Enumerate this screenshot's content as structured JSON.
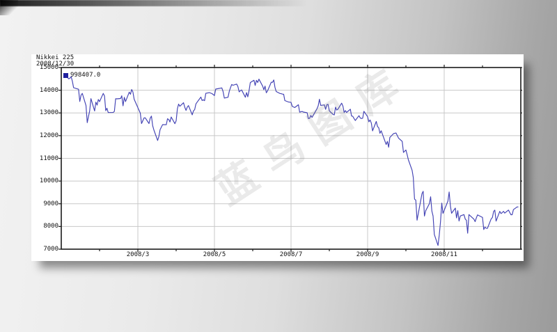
{
  "panel": {
    "title_line1": "Nikkei 225",
    "title_line2": "2008/12/30",
    "legend": {
      "label": "998407.0",
      "marker_color": "#20209e"
    }
  },
  "watermark": {
    "text": "蓝鸟图库"
  },
  "chart_data": {
    "type": "line",
    "title": "Nikkei 225",
    "as_of_date": "2008/12/30",
    "xlabel": "",
    "ylabel": "",
    "ylim": [
      7000,
      15000
    ],
    "y_ticks": [
      7000,
      8000,
      9000,
      10000,
      11000,
      12000,
      13000,
      14000,
      15000
    ],
    "x_major_ticks": [
      {
        "label": "2008/3",
        "month": 3
      },
      {
        "label": "2008/5",
        "month": 5
      },
      {
        "label": "2008/7",
        "month": 7
      },
      {
        "label": "2008/9",
        "month": 9
      },
      {
        "label": "2008/11",
        "month": 11
      }
    ],
    "x_minor_tick_months": [
      2,
      4,
      6,
      8,
      10,
      12
    ],
    "grid": true,
    "grid_color": "#c8c8c8",
    "frame_color": "#1a1a1a",
    "legend_position": "top-left-inside",
    "series": [
      {
        "name": "998407.0",
        "color": "#4242b4",
        "points": [
          [
            1,
            4,
            14691
          ],
          [
            1,
            7,
            14500
          ],
          [
            1,
            8,
            14528
          ],
          [
            1,
            9,
            14599
          ],
          [
            1,
            10,
            14388
          ],
          [
            1,
            11,
            14110
          ],
          [
            1,
            15,
            14043
          ],
          [
            1,
            16,
            13504
          ],
          [
            1,
            17,
            13783
          ],
          [
            1,
            18,
            13861
          ],
          [
            1,
            21,
            13325
          ],
          [
            1,
            22,
            12573
          ],
          [
            1,
            23,
            12829
          ],
          [
            1,
            24,
            13092
          ],
          [
            1,
            25,
            13629
          ],
          [
            1,
            28,
            13087
          ],
          [
            1,
            29,
            13478
          ],
          [
            1,
            30,
            13345
          ],
          [
            1,
            31,
            13592
          ],
          [
            2,
            1,
            13497
          ],
          [
            2,
            4,
            13859
          ],
          [
            2,
            5,
            13745
          ],
          [
            2,
            6,
            13099
          ],
          [
            2,
            7,
            13207
          ],
          [
            2,
            8,
            13017
          ],
          [
            2,
            12,
            13021
          ],
          [
            2,
            13,
            13068
          ],
          [
            2,
            14,
            13626
          ],
          [
            2,
            15,
            13622
          ],
          [
            2,
            18,
            13635
          ],
          [
            2,
            19,
            13757
          ],
          [
            2,
            20,
            13310
          ],
          [
            2,
            21,
            13688
          ],
          [
            2,
            22,
            13500
          ],
          [
            2,
            25,
            13914
          ],
          [
            2,
            26,
            13824
          ],
          [
            2,
            27,
            14031
          ],
          [
            2,
            28,
            13925
          ],
          [
            2,
            29,
            13603
          ],
          [
            3,
            3,
            12992
          ],
          [
            3,
            4,
            12532
          ],
          [
            3,
            5,
            12656
          ],
          [
            3,
            6,
            12782
          ],
          [
            3,
            7,
            12783
          ],
          [
            3,
            10,
            12532
          ],
          [
            3,
            11,
            12770
          ],
          [
            3,
            12,
            12861
          ],
          [
            3,
            13,
            12433
          ],
          [
            3,
            14,
            12241
          ],
          [
            3,
            17,
            11787
          ],
          [
            3,
            18,
            11964
          ],
          [
            3,
            19,
            12260
          ],
          [
            3,
            21,
            12482
          ],
          [
            3,
            24,
            12480
          ],
          [
            3,
            25,
            12745
          ],
          [
            3,
            26,
            12706
          ],
          [
            3,
            27,
            12604
          ],
          [
            3,
            28,
            12820
          ],
          [
            3,
            31,
            12526
          ],
          [
            4,
            1,
            12656
          ],
          [
            4,
            2,
            13189
          ],
          [
            4,
            3,
            13389
          ],
          [
            4,
            4,
            13293
          ],
          [
            4,
            7,
            13450
          ],
          [
            4,
            8,
            13250
          ],
          [
            4,
            9,
            13111
          ],
          [
            4,
            10,
            13260
          ],
          [
            4,
            11,
            13323
          ],
          [
            4,
            14,
            12917
          ],
          [
            4,
            15,
            13087
          ],
          [
            4,
            16,
            13146
          ],
          [
            4,
            17,
            13398
          ],
          [
            4,
            18,
            13476
          ],
          [
            4,
            21,
            13697
          ],
          [
            4,
            22,
            13547
          ],
          [
            4,
            23,
            13579
          ],
          [
            4,
            24,
            13540
          ],
          [
            4,
            25,
            13863
          ],
          [
            4,
            28,
            13894
          ],
          [
            4,
            30,
            13850
          ],
          [
            5,
            1,
            13766
          ],
          [
            5,
            2,
            14049
          ],
          [
            5,
            7,
            14102
          ],
          [
            5,
            8,
            13943
          ],
          [
            5,
            9,
            13655
          ],
          [
            5,
            12,
            13690
          ],
          [
            5,
            13,
            13953
          ],
          [
            5,
            14,
            14118
          ],
          [
            5,
            15,
            14251
          ],
          [
            5,
            16,
            14219
          ],
          [
            5,
            19,
            14269
          ],
          [
            5,
            20,
            14160
          ],
          [
            5,
            21,
            13926
          ],
          [
            5,
            22,
            13978
          ],
          [
            5,
            23,
            14012
          ],
          [
            5,
            26,
            13690
          ],
          [
            5,
            27,
            13893
          ],
          [
            5,
            28,
            13709
          ],
          [
            5,
            29,
            13978
          ],
          [
            5,
            30,
            14339
          ],
          [
            6,
            2,
            14440
          ],
          [
            6,
            3,
            14209
          ],
          [
            6,
            4,
            14435
          ],
          [
            6,
            5,
            14341
          ],
          [
            6,
            6,
            14489
          ],
          [
            6,
            9,
            14181
          ],
          [
            6,
            10,
            14021
          ],
          [
            6,
            11,
            14183
          ],
          [
            6,
            12,
            13888
          ],
          [
            6,
            13,
            13973
          ],
          [
            6,
            16,
            14354
          ],
          [
            6,
            17,
            14348
          ],
          [
            6,
            18,
            14452
          ],
          [
            6,
            19,
            14130
          ],
          [
            6,
            20,
            13942
          ],
          [
            6,
            23,
            13857
          ],
          [
            6,
            24,
            13849
          ],
          [
            6,
            25,
            13829
          ],
          [
            6,
            26,
            13822
          ],
          [
            6,
            27,
            13544
          ],
          [
            6,
            30,
            13481
          ],
          [
            7,
            1,
            13463
          ],
          [
            7,
            2,
            13286
          ],
          [
            7,
            3,
            13265
          ],
          [
            7,
            4,
            13237
          ],
          [
            7,
            7,
            13360
          ],
          [
            7,
            8,
            13033
          ],
          [
            7,
            9,
            13052
          ],
          [
            7,
            10,
            13067
          ],
          [
            7,
            11,
            13039
          ],
          [
            7,
            14,
            13010
          ],
          [
            7,
            15,
            12754
          ],
          [
            7,
            16,
            12760
          ],
          [
            7,
            17,
            12887
          ],
          [
            7,
            18,
            12803
          ],
          [
            7,
            22,
            13184
          ],
          [
            7,
            23,
            13312
          ],
          [
            7,
            24,
            13603
          ],
          [
            7,
            25,
            13334
          ],
          [
            7,
            28,
            13353
          ],
          [
            7,
            29,
            13159
          ],
          [
            7,
            30,
            13367
          ],
          [
            7,
            31,
            13377
          ],
          [
            8,
            1,
            13094
          ],
          [
            8,
            4,
            12933
          ],
          [
            8,
            5,
            12914
          ],
          [
            8,
            6,
            13254
          ],
          [
            8,
            7,
            13124
          ],
          [
            8,
            8,
            13168
          ],
          [
            8,
            11,
            13430
          ],
          [
            8,
            12,
            13303
          ],
          [
            8,
            13,
            13023
          ],
          [
            8,
            14,
            13103
          ],
          [
            8,
            15,
            13019
          ],
          [
            8,
            18,
            13165
          ],
          [
            8,
            19,
            12865
          ],
          [
            8,
            20,
            12851
          ],
          [
            8,
            21,
            12752
          ],
          [
            8,
            22,
            12666
          ],
          [
            8,
            25,
            12878
          ],
          [
            8,
            26,
            12778
          ],
          [
            8,
            27,
            12752
          ],
          [
            8,
            28,
            12768
          ],
          [
            8,
            29,
            13073
          ],
          [
            9,
            1,
            12834
          ],
          [
            9,
            2,
            12609
          ],
          [
            9,
            3,
            12689
          ],
          [
            9,
            4,
            12557
          ],
          [
            9,
            5,
            12212
          ],
          [
            9,
            8,
            12624
          ],
          [
            9,
            9,
            12400
          ],
          [
            9,
            10,
            12346
          ],
          [
            9,
            11,
            12102
          ],
          [
            9,
            12,
            12215
          ],
          [
            9,
            16,
            11610
          ],
          [
            9,
            17,
            11749
          ],
          [
            9,
            18,
            11490
          ],
          [
            9,
            19,
            11921
          ],
          [
            9,
            22,
            12090
          ],
          [
            9,
            24,
            12116
          ],
          [
            9,
            25,
            12006
          ],
          [
            9,
            26,
            11893
          ],
          [
            9,
            29,
            11744
          ],
          [
            9,
            30,
            11260
          ],
          [
            10,
            1,
            11369
          ],
          [
            10,
            2,
            11155
          ],
          [
            10,
            3,
            10938
          ],
          [
            10,
            6,
            10473
          ],
          [
            10,
            7,
            10155
          ],
          [
            10,
            8,
            9203
          ],
          [
            10,
            9,
            9158
          ],
          [
            10,
            10,
            8276
          ],
          [
            10,
            14,
            9448
          ],
          [
            10,
            15,
            9547
          ],
          [
            10,
            16,
            8458
          ],
          [
            10,
            17,
            8693
          ],
          [
            10,
            20,
            9006
          ],
          [
            10,
            21,
            9307
          ],
          [
            10,
            22,
            8675
          ],
          [
            10,
            23,
            8461
          ],
          [
            10,
            24,
            7649
          ],
          [
            10,
            27,
            7163
          ],
          [
            10,
            28,
            7621
          ],
          [
            10,
            29,
            8212
          ],
          [
            10,
            30,
            9030
          ],
          [
            10,
            31,
            8577
          ],
          [
            11,
            4,
            9114
          ],
          [
            11,
            5,
            9521
          ],
          [
            11,
            6,
            8899
          ],
          [
            11,
            7,
            8583
          ],
          [
            11,
            10,
            8809
          ],
          [
            11,
            11,
            8376
          ],
          [
            11,
            12,
            8695
          ],
          [
            11,
            13,
            8238
          ],
          [
            11,
            14,
            8462
          ],
          [
            11,
            17,
            8522
          ],
          [
            11,
            18,
            8328
          ],
          [
            11,
            19,
            8273
          ],
          [
            11,
            20,
            7703
          ],
          [
            11,
            21,
            8522
          ],
          [
            11,
            25,
            8323
          ],
          [
            11,
            26,
            8213
          ],
          [
            11,
            27,
            8373
          ],
          [
            11,
            28,
            8512
          ],
          [
            12,
            1,
            8397
          ],
          [
            12,
            2,
            7863
          ],
          [
            12,
            3,
            7972
          ],
          [
            12,
            4,
            7924
          ],
          [
            12,
            5,
            7918
          ],
          [
            12,
            8,
            8329
          ],
          [
            12,
            9,
            8395
          ],
          [
            12,
            10,
            8660
          ],
          [
            12,
            11,
            8721
          ],
          [
            12,
            12,
            8236
          ],
          [
            12,
            15,
            8665
          ],
          [
            12,
            16,
            8568
          ],
          [
            12,
            17,
            8612
          ],
          [
            12,
            18,
            8668
          ],
          [
            12,
            19,
            8589
          ],
          [
            12,
            22,
            8724
          ],
          [
            12,
            24,
            8517
          ],
          [
            12,
            25,
            8518
          ],
          [
            12,
            26,
            8740
          ],
          [
            12,
            29,
            8860
          ],
          [
            12,
            30,
            8860
          ]
        ]
      }
    ]
  }
}
